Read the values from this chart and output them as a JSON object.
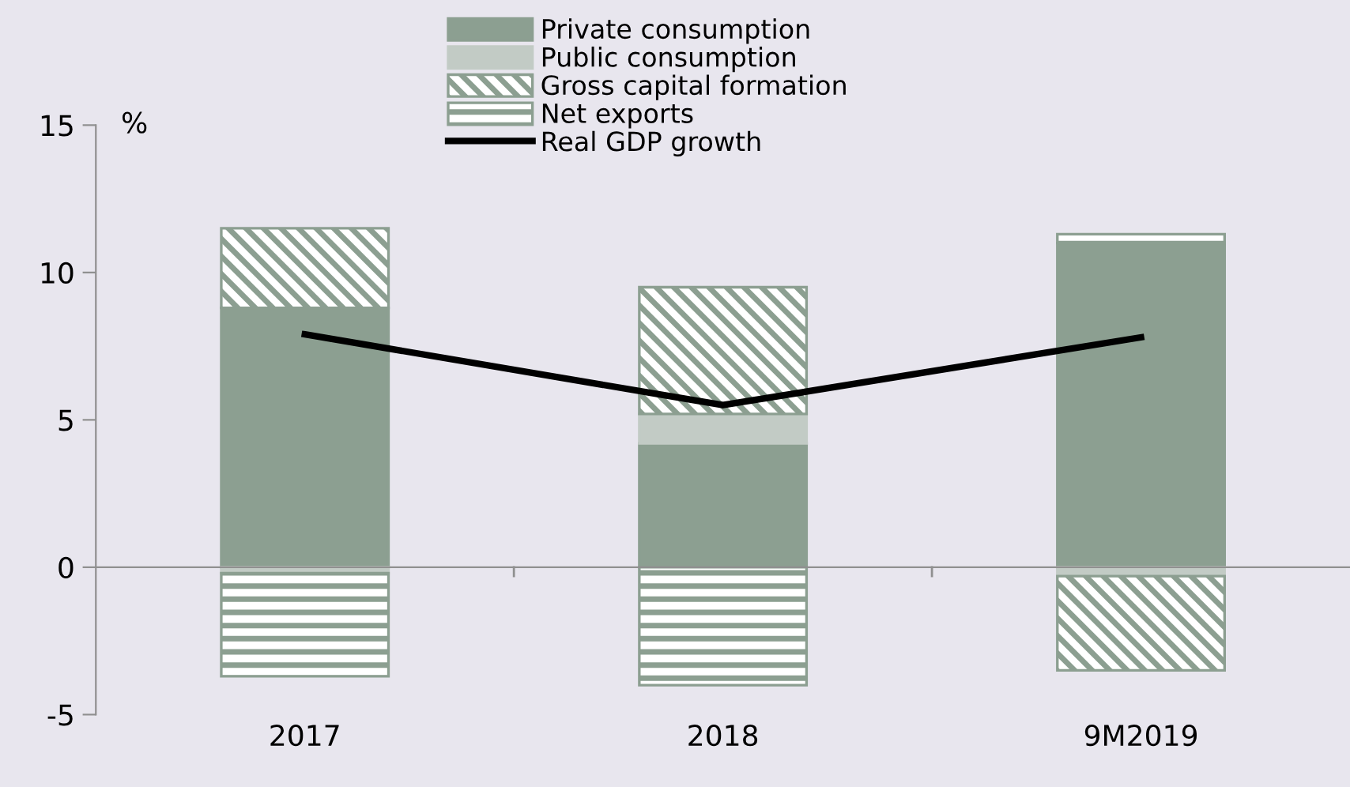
{
  "chart_data": {
    "type": "bar",
    "stacked": true,
    "ylabel": "%",
    "categories": [
      "2017",
      "2018",
      "9M2019"
    ],
    "series": [
      {
        "name": "Private consumption",
        "color": "#8c9f91",
        "values": [
          8.8,
          4.2,
          11.0
        ]
      },
      {
        "name": "Public consumption",
        "color": "#c2cbc5",
        "values": [
          -0.2,
          1.0,
          -0.3
        ]
      },
      {
        "name": "Gross capital formation",
        "color": "#8c9f91",
        "values": [
          2.7,
          4.3,
          -3.2
        ]
      },
      {
        "name": "Net exports",
        "color": "#8c9f91",
        "values": [
          -3.5,
          -4.0,
          0.3
        ]
      },
      {
        "name": "Real GDP growth",
        "type": "line",
        "color": "#000000",
        "values": [
          7.9,
          5.5,
          7.8
        ]
      }
    ],
    "ylim": [
      -5,
      15
    ],
    "yticks": [
      -5,
      0,
      5,
      10,
      15
    ],
    "legend": "top"
  }
}
